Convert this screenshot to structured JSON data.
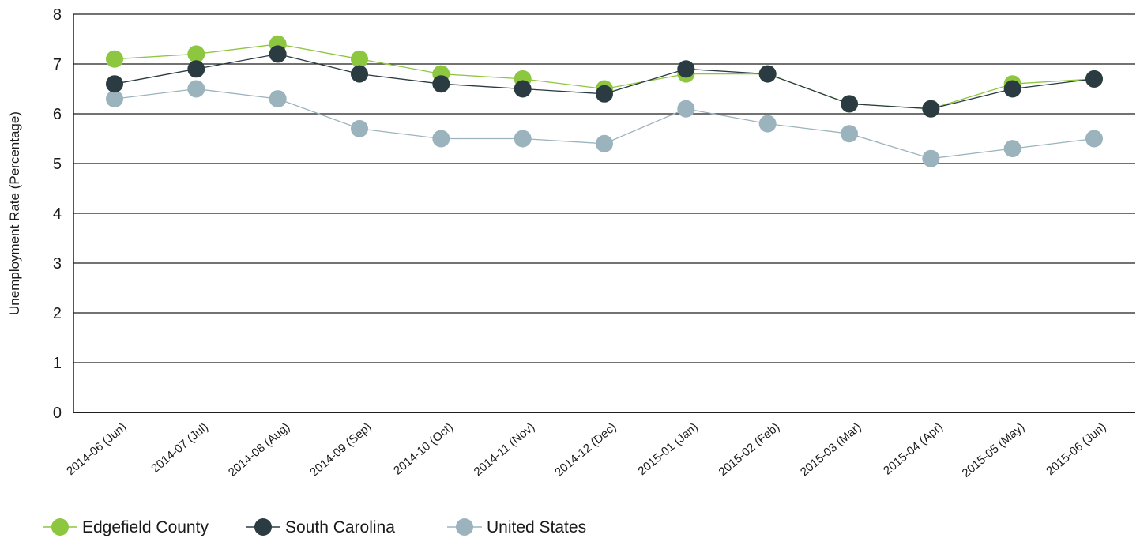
{
  "chart_data": {
    "type": "line",
    "title": "",
    "xlabel": "",
    "ylabel": "Unemployment Rate (Percentage)",
    "ylim": [
      0,
      8
    ],
    "yticks": [
      0,
      1,
      2,
      3,
      4,
      5,
      6,
      7,
      8
    ],
    "grid": "horizontal",
    "legend_position": "bottom-left",
    "categories": [
      "2014-06 (Jun)",
      "2014-07 (Jul)",
      "2014-08 (Aug)",
      "2014-09 (Sep)",
      "2014-10 (Oct)",
      "2014-11 (Nov)",
      "2014-12 (Dec)",
      "2015-01 (Jan)",
      "2015-02 (Feb)",
      "2015-03 (Mar)",
      "2015-04 (Apr)",
      "2015-05 (May)",
      "2015-06 (Jun)"
    ],
    "series": [
      {
        "name": "Edgefield County",
        "color": "#8dc63f",
        "values": [
          7.1,
          7.2,
          7.4,
          7.1,
          6.8,
          6.7,
          6.5,
          6.8,
          6.8,
          6.2,
          6.1,
          6.6,
          6.7
        ]
      },
      {
        "name": "South Carolina",
        "color": "#2a3b42",
        "values": [
          6.6,
          6.9,
          7.2,
          6.8,
          6.6,
          6.5,
          6.4,
          6.9,
          6.8,
          6.2,
          6.1,
          6.5,
          6.7
        ]
      },
      {
        "name": "United States",
        "color": "#9bb3bd",
        "values": [
          6.3,
          6.5,
          6.3,
          5.7,
          5.5,
          5.5,
          5.4,
          6.1,
          5.8,
          5.6,
          5.1,
          5.3,
          5.5
        ]
      }
    ]
  }
}
